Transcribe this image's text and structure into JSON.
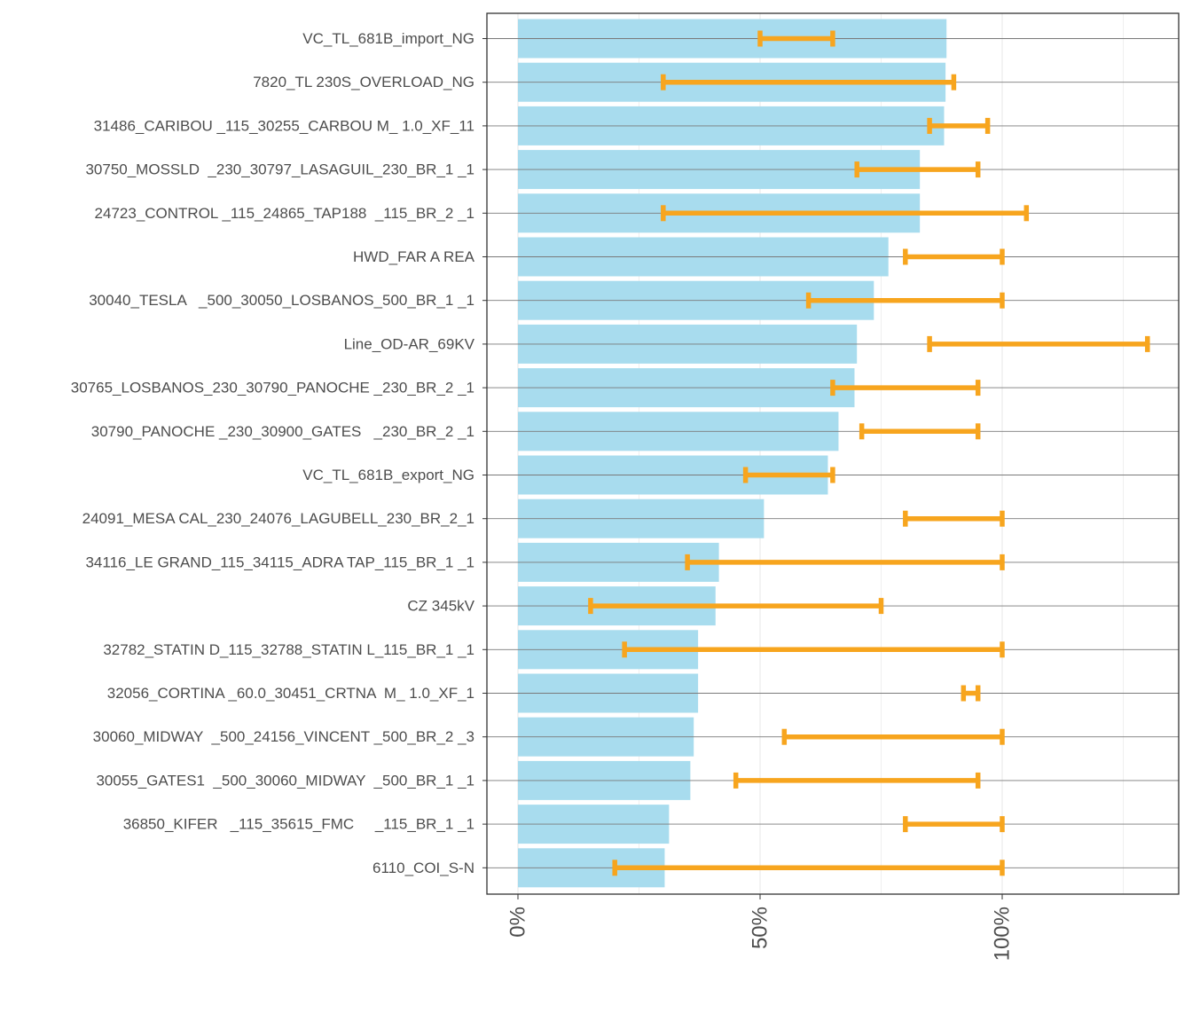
{
  "chart_data": {
    "type": "bar",
    "orientation": "horizontal",
    "title": "",
    "xlabel": "",
    "ylabel": "",
    "xlim": [
      -6.5,
      136.5
    ],
    "x_ticks": [
      0,
      50,
      100
    ],
    "x_tick_labels": [
      "0%",
      "50%",
      "100%"
    ],
    "grid": true,
    "legend": "none",
    "colors": {
      "bar": "#a8dcee",
      "errorbar": "#f7a51e",
      "axis": "#333333",
      "gridline": "#ebebeb",
      "row_line": "#7a7a7a"
    },
    "categories": [
      "VC_TL_681B_import_NG",
      "7820_TL 230S_OVERLOAD_NG",
      "31486_CARIBOU _115_30255_CARBOU M_ 1.0_XF_11",
      "30750_MOSSLD  _230_30797_LASAGUIL_230_BR_1 _1",
      "24723_CONTROL _115_24865_TAP188  _115_BR_2 _1",
      "HWD_FAR A REA",
      "30040_TESLA   _500_30050_LOSBANOS_500_BR_1 _1",
      "Line_OD-AR_69KV",
      "30765_LOSBANOS_230_30790_PANOCHE _230_BR_2 _1",
      "30790_PANOCHE _230_30900_GATES   _230_BR_2 _1",
      "VC_TL_681B_export_NG",
      "24091_MESA CAL_230_24076_LAGUBELL_230_BR_2_1",
      "34116_LE GRAND_115_34115_ADRA TAP_115_BR_1 _1",
      "CZ 345kV",
      "32782_STATIN D_115_32788_STATIN L_115_BR_1 _1",
      "32056_CORTINA _60.0_30451_CRTNA  M_ 1.0_XF_1",
      "30060_MIDWAY  _500_24156_VINCENT _500_BR_2 _3",
      "30055_GATES1  _500_30060_MIDWAY  _500_BR_1 _1",
      "36850_KIFER   _115_35615_FMC     _115_BR_1 _1",
      "6110_COI_S-N"
    ],
    "values": [
      88.5,
      88.3,
      88,
      83,
      83,
      76.5,
      73.5,
      70,
      69.5,
      66.2,
      64,
      50.8,
      41.5,
      40.8,
      37.2,
      37.2,
      36.3,
      35.6,
      31.2,
      30.3
    ],
    "error_low": [
      50,
      30,
      85,
      70,
      30,
      80,
      60,
      85,
      65,
      71,
      47,
      80,
      35,
      15,
      22,
      92,
      55,
      45,
      80,
      20
    ],
    "error_high": [
      65,
      90,
      97,
      95,
      105,
      100,
      100,
      130,
      95,
      95,
      65,
      100,
      100,
      75,
      100,
      95,
      100,
      95,
      100,
      100
    ]
  }
}
